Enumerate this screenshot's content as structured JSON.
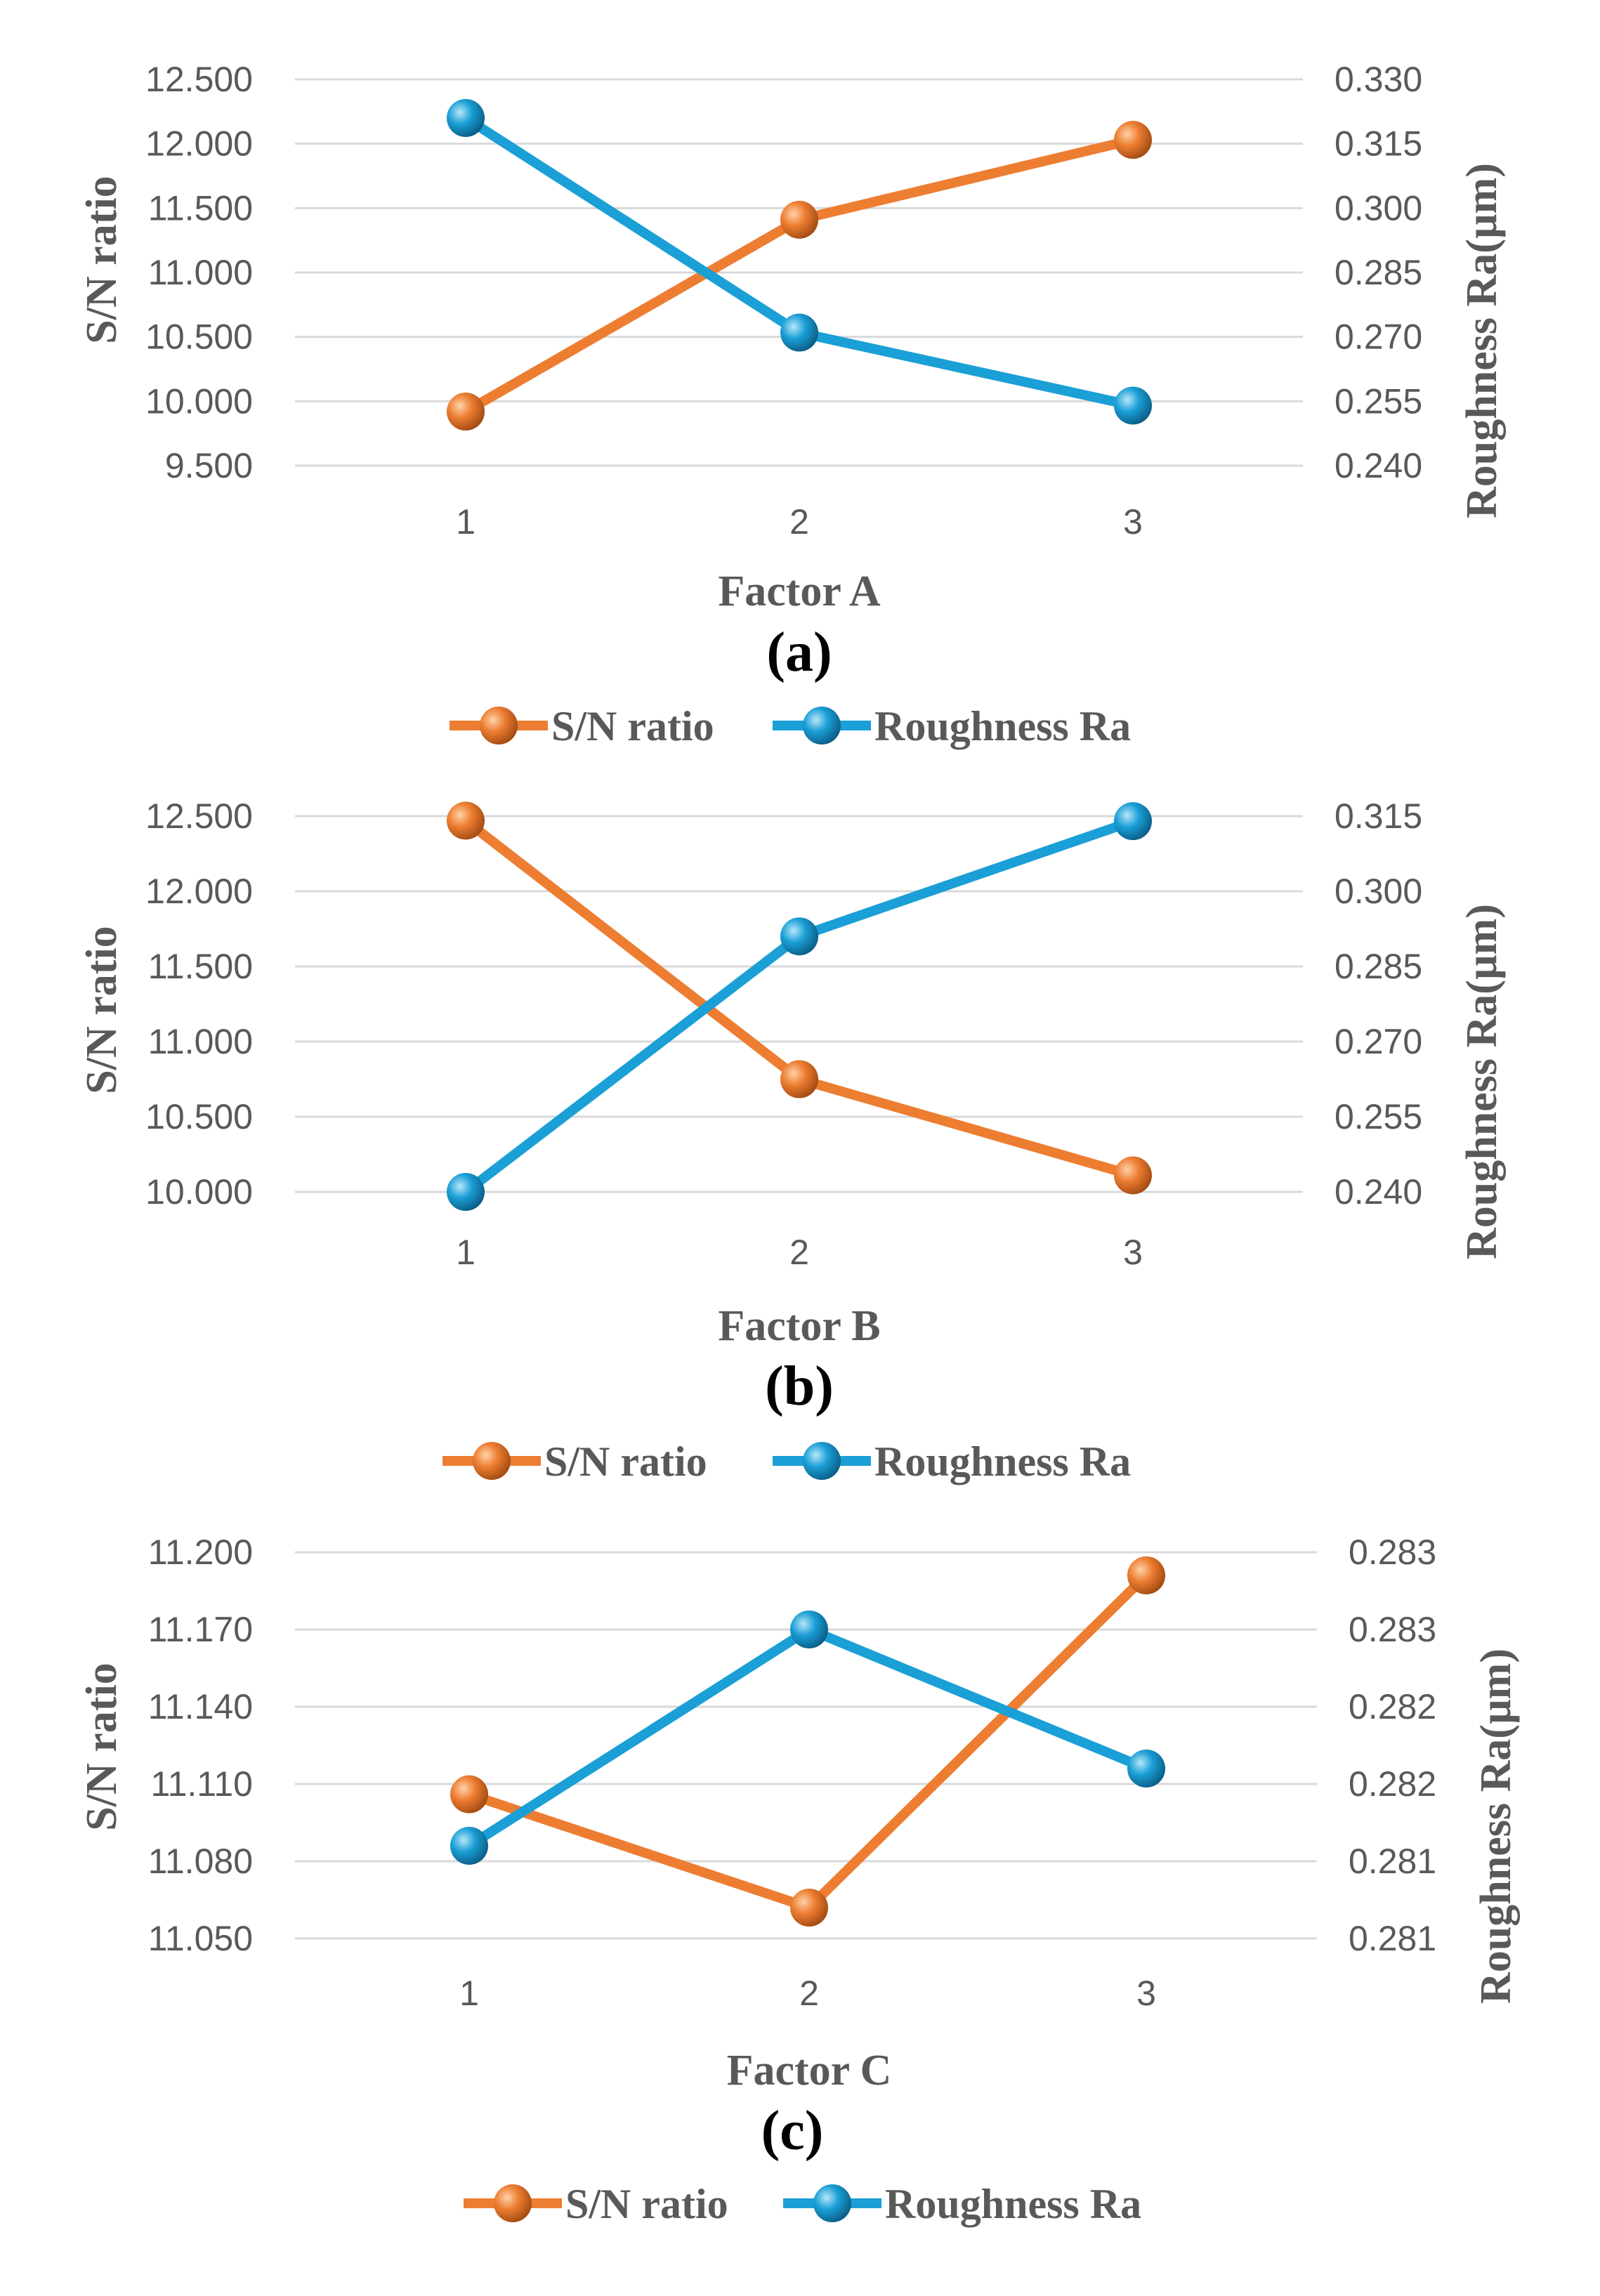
{
  "colors": {
    "sn": "#ED7D31",
    "sn_dark": "#B8561A",
    "ra": "#1A9FD6",
    "ra_dark": "#0E6E9C",
    "grid": "#D9D9D9",
    "text": "#595959"
  },
  "chart_data": [
    {
      "type": "line",
      "panel_label": "(a)",
      "xlabel": "Factor A",
      "ylabel": "S/N ratio",
      "y2label": "Roughness Ra(µm)",
      "categories": [
        "1",
        "2",
        "3"
      ],
      "ylim": [
        9.5,
        12.5
      ],
      "yticks": [
        "12.500",
        "12.000",
        "11.500",
        "11.000",
        "10.500",
        "10.000",
        "9.500"
      ],
      "y2lim": [
        0.24,
        0.33
      ],
      "y2ticks": [
        "0.330",
        "0.315",
        "0.300",
        "0.285",
        "0.270",
        "0.255",
        "0.240"
      ],
      "series": [
        {
          "name": "S/N ratio",
          "axis": "left",
          "values": [
            9.92,
            11.41,
            12.03
          ]
        },
        {
          "name": "Roughness Ra",
          "axis": "right",
          "values": [
            0.321,
            0.271,
            0.254
          ]
        }
      ]
    },
    {
      "type": "line",
      "panel_label": "(b)",
      "xlabel": "Factor B",
      "ylabel": "S/N ratio",
      "y2label": "Roughness Ra(µm)",
      "categories": [
        "1",
        "2",
        "3"
      ],
      "ylim": [
        10.0,
        12.5
      ],
      "yticks": [
        "12.500",
        "12.000",
        "11.500",
        "11.000",
        "10.500",
        "10.000"
      ],
      "y2lim": [
        0.24,
        0.315
      ],
      "y2ticks": [
        "0.315",
        "0.300",
        "0.285",
        "0.270",
        "0.255",
        "0.240"
      ],
      "series": [
        {
          "name": "S/N ratio",
          "axis": "left",
          "values": [
            12.47,
            10.75,
            10.11
          ]
        },
        {
          "name": "Roughness Ra",
          "axis": "right",
          "values": [
            0.24,
            0.291,
            0.314
          ]
        }
      ]
    },
    {
      "type": "line",
      "panel_label": "(c)",
      "xlabel": "Factor C",
      "ylabel": "S/N ratio",
      "y2label": "Roughness Ra(µm)",
      "categories": [
        "1",
        "2",
        "3"
      ],
      "ylim": [
        11.05,
        11.2
      ],
      "yticks": [
        "11.200",
        "11.170",
        "11.140",
        "11.110",
        "11.080",
        "11.050"
      ],
      "y2lim": [
        0.2805,
        0.283
      ],
      "y2ticks": [
        "0.283",
        "0.283",
        "0.282",
        "0.282",
        "0.281",
        "0.281"
      ],
      "series": [
        {
          "name": "S/N ratio",
          "axis": "left",
          "values": [
            11.106,
            11.062,
            11.191
          ]
        },
        {
          "name": "Roughness Ra",
          "axis": "right",
          "values": [
            0.2811,
            0.2825,
            0.2816
          ]
        }
      ]
    }
  ]
}
